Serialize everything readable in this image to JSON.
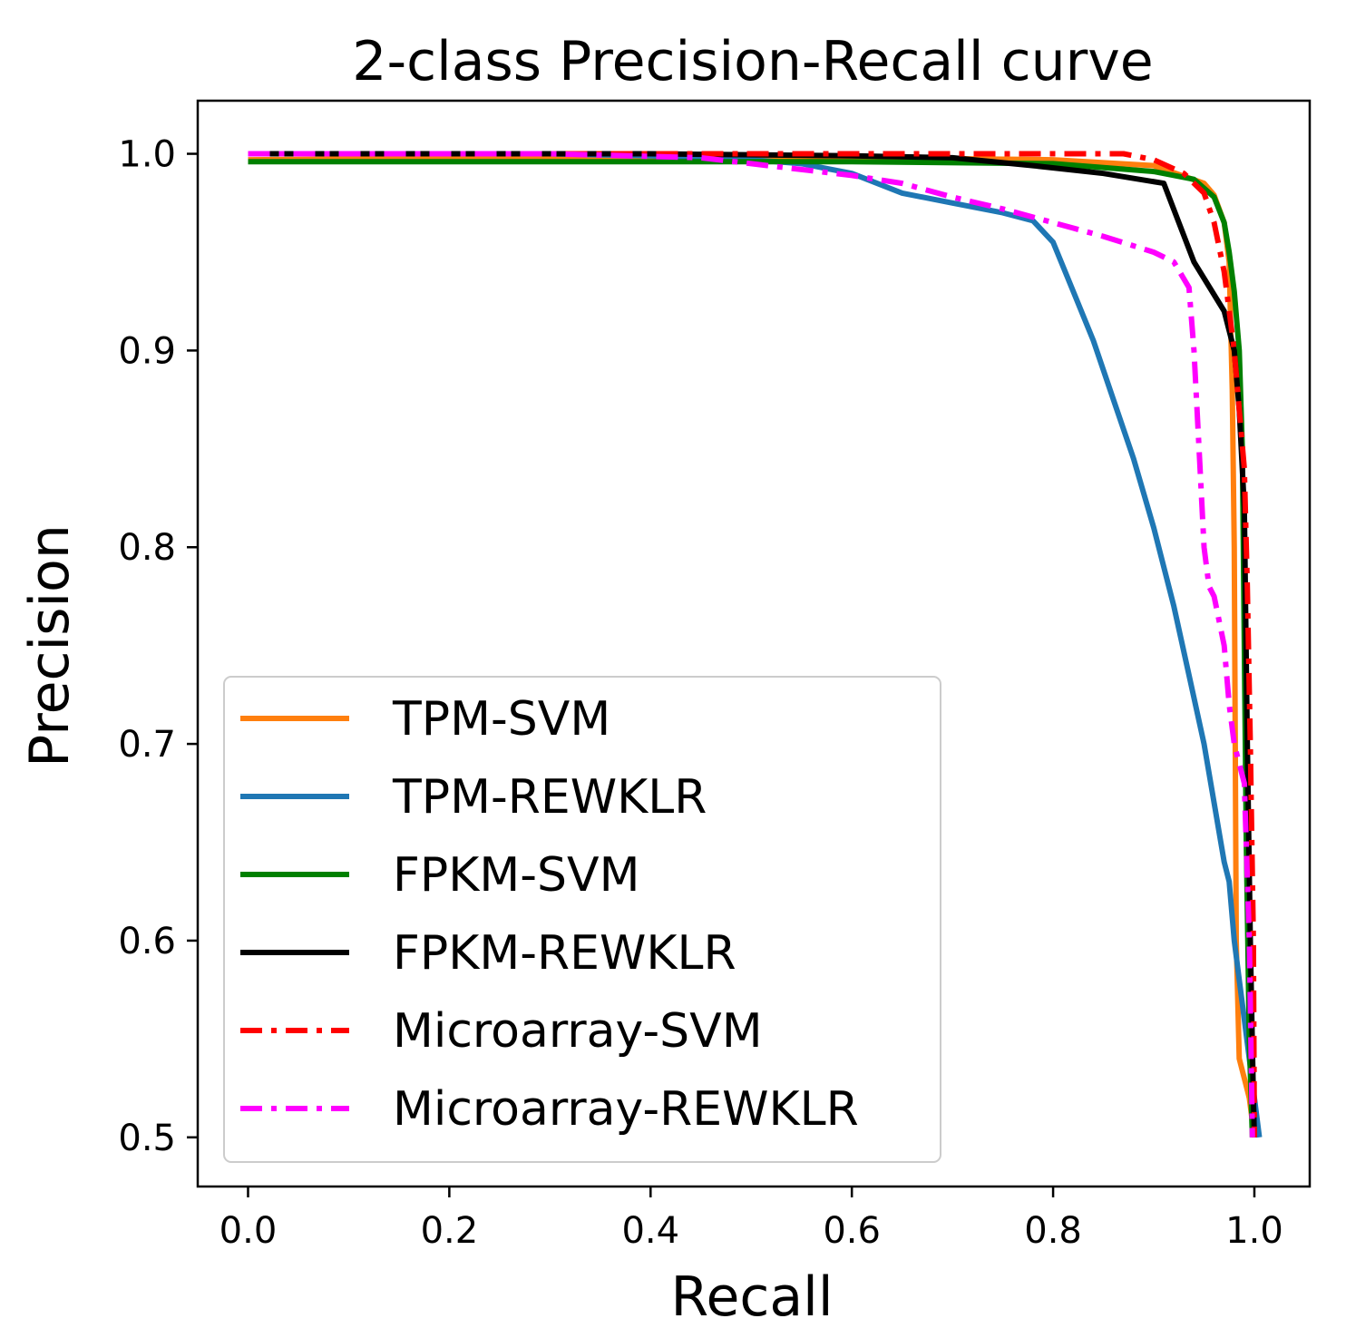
{
  "chart_data": {
    "type": "line",
    "title": "2-class Precision-Recall curve",
    "xlabel": "Recall",
    "ylabel": "Precision",
    "xlim": [
      -0.05,
      1.055
    ],
    "ylim": [
      0.475,
      1.027
    ],
    "xticks": [
      0.0,
      0.2,
      0.4,
      0.6,
      0.8,
      1.0
    ],
    "xtick_labels": [
      "0.0",
      "0.2",
      "0.4",
      "0.6",
      "0.8",
      "1.0"
    ],
    "yticks": [
      0.5,
      0.6,
      0.7,
      0.8,
      0.9,
      1.0
    ],
    "ytick_labels": [
      "0.5",
      "0.6",
      "0.7",
      "0.8",
      "0.9",
      "1.0"
    ],
    "grid": false,
    "legend_position": "lower-left",
    "series": [
      {
        "name": "TPM-SVM",
        "color": "#ff7f0e",
        "style": "solid",
        "x": [
          0.0,
          0.3,
          0.6,
          0.8,
          0.9,
          0.95,
          0.96,
          0.97,
          0.975,
          0.978,
          0.98,
          0.982,
          0.985,
          0.99,
          0.995,
          1.0
        ],
        "y": [
          0.997,
          0.998,
          0.998,
          0.997,
          0.994,
          0.985,
          0.979,
          0.965,
          0.945,
          0.88,
          0.8,
          0.6,
          0.54,
          0.53,
          0.52,
          0.5
        ]
      },
      {
        "name": "TPM-REWKLR",
        "color": "#1f77b4",
        "style": "solid",
        "x": [
          0.0,
          0.1,
          0.2,
          0.3,
          0.4,
          0.5,
          0.55,
          0.6,
          0.65,
          0.7,
          0.75,
          0.78,
          0.8,
          0.82,
          0.84,
          0.86,
          0.88,
          0.9,
          0.92,
          0.935,
          0.95,
          0.96,
          0.97,
          0.975,
          0.98,
          0.985,
          0.99,
          0.995,
          1.0,
          1.005
        ],
        "y": [
          1.0,
          1.0,
          1.0,
          1.0,
          0.999,
          0.997,
          0.995,
          0.99,
          0.98,
          0.975,
          0.97,
          0.966,
          0.955,
          0.93,
          0.905,
          0.875,
          0.845,
          0.81,
          0.77,
          0.735,
          0.7,
          0.67,
          0.64,
          0.63,
          0.6,
          0.58,
          0.56,
          0.54,
          0.52,
          0.5
        ]
      },
      {
        "name": "FPKM-SVM",
        "color": "#008000",
        "style": "solid",
        "x": [
          0.0,
          0.2,
          0.4,
          0.6,
          0.8,
          0.9,
          0.94,
          0.96,
          0.97,
          0.975,
          0.98,
          0.985,
          0.988,
          0.99,
          0.992,
          0.995,
          0.998
        ],
        "y": [
          0.996,
          0.996,
          0.996,
          0.996,
          0.995,
          0.991,
          0.987,
          0.978,
          0.965,
          0.95,
          0.93,
          0.9,
          0.85,
          0.75,
          0.65,
          0.55,
          0.5
        ]
      },
      {
        "name": "FPKM-REWKLR",
        "color": "#000000",
        "style": "solid",
        "x": [
          0.0,
          0.2,
          0.4,
          0.6,
          0.7,
          0.78,
          0.85,
          0.91,
          0.94,
          0.97,
          0.98,
          0.985,
          0.99,
          0.993,
          0.996,
          0.999,
          1.0
        ],
        "y": [
          1.0,
          1.0,
          1.0,
          0.999,
          0.998,
          0.994,
          0.99,
          0.985,
          0.945,
          0.92,
          0.9,
          0.87,
          0.82,
          0.7,
          0.6,
          0.52,
          0.5
        ]
      },
      {
        "name": "Microarray-SVM",
        "color": "#ff0000",
        "style": "dashdot",
        "x": [
          0.0,
          0.2,
          0.4,
          0.6,
          0.8,
          0.87,
          0.9,
          0.93,
          0.95,
          0.96,
          0.97,
          0.98,
          0.985,
          0.99,
          0.993,
          0.996,
          0.999,
          1.0
        ],
        "y": [
          1.0,
          1.0,
          1.0,
          1.0,
          1.0,
          1.0,
          0.997,
          0.99,
          0.98,
          0.965,
          0.94,
          0.9,
          0.87,
          0.84,
          0.78,
          0.7,
          0.6,
          0.5
        ]
      },
      {
        "name": "Microarray-REWKLR",
        "color": "#ff00ff",
        "style": "dashdot",
        "x": [
          0.0,
          0.3,
          0.45,
          0.5,
          0.55,
          0.6,
          0.65,
          0.7,
          0.75,
          0.8,
          0.85,
          0.9,
          0.92,
          0.935,
          0.94,
          0.945,
          0.95,
          0.955,
          0.96,
          0.97,
          0.975,
          0.98,
          0.985,
          0.99,
          0.995,
          0.998
        ],
        "y": [
          1.0,
          1.0,
          0.998,
          0.995,
          0.992,
          0.989,
          0.985,
          0.978,
          0.972,
          0.965,
          0.958,
          0.95,
          0.945,
          0.932,
          0.9,
          0.85,
          0.8,
          0.78,
          0.775,
          0.75,
          0.72,
          0.7,
          0.69,
          0.68,
          0.6,
          0.5
        ]
      }
    ]
  }
}
